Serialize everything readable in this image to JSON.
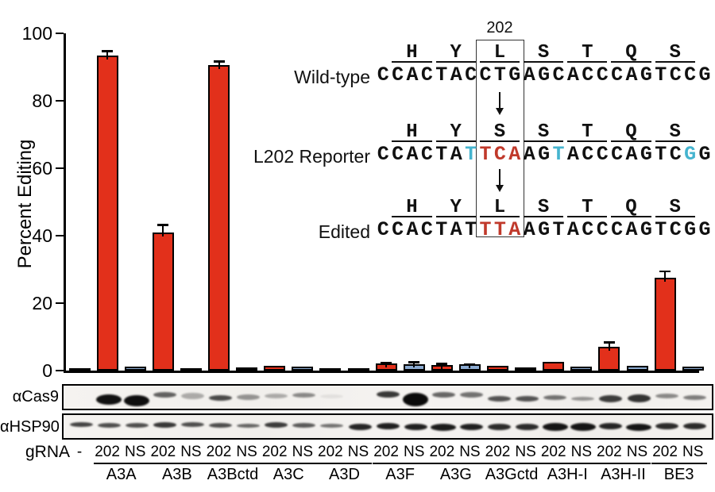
{
  "chart_data": {
    "type": "bar",
    "title": "",
    "xlabel": "",
    "ylabel": "Percent Editing",
    "ylim": [
      0,
      100
    ],
    "yticks": [
      0,
      20,
      40,
      60,
      80,
      100
    ],
    "grid": false,
    "colors": {
      "g202": "#e2301b",
      "ns": "#8cabd1",
      "control": "#1c1c1c"
    },
    "groups": [
      "A3A",
      "A3B",
      "A3Bctd",
      "A3C",
      "A3D",
      "A3F",
      "A3G",
      "A3Gctd",
      "A3H-I",
      "A3H-II",
      "BE3"
    ],
    "bars": [
      {
        "group": "",
        "gRNA": "-",
        "value": 0.7,
        "error": null
      },
      {
        "group": "A3A",
        "gRNA": "202",
        "value": 93.5,
        "error": 1.5
      },
      {
        "group": "A3A",
        "gRNA": "NS",
        "value": 1.2,
        "error": null
      },
      {
        "group": "A3B",
        "gRNA": "202",
        "value": 41,
        "error": 2.5
      },
      {
        "group": "A3B",
        "gRNA": "NS",
        "value": 0.8,
        "error": null
      },
      {
        "group": "A3Bctd",
        "gRNA": "202",
        "value": 90.5,
        "error": 1.5
      },
      {
        "group": "A3Bctd",
        "gRNA": "NS",
        "value": 1.0,
        "error": null
      },
      {
        "group": "A3C",
        "gRNA": "202",
        "value": 1.4,
        "error": null
      },
      {
        "group": "A3C",
        "gRNA": "NS",
        "value": 1.1,
        "error": null
      },
      {
        "group": "A3D",
        "gRNA": "202",
        "value": 0.8,
        "error": null
      },
      {
        "group": "A3D",
        "gRNA": "NS",
        "value": 0.8,
        "error": null
      },
      {
        "group": "A3F",
        "gRNA": "202",
        "value": 2.1,
        "error": 0.6
      },
      {
        "group": "A3F",
        "gRNA": "NS",
        "value": 2.0,
        "error": 0.8
      },
      {
        "group": "A3G",
        "gRNA": "202",
        "value": 1.6,
        "error": 0.7
      },
      {
        "group": "A3G",
        "gRNA": "NS",
        "value": 1.8,
        "error": 0.3
      },
      {
        "group": "A3Gctd",
        "gRNA": "202",
        "value": 1.3,
        "error": null
      },
      {
        "group": "A3Gctd",
        "gRNA": "NS",
        "value": 0.9,
        "error": null
      },
      {
        "group": "A3H-I",
        "gRNA": "202",
        "value": 2.7,
        "error": null
      },
      {
        "group": "A3H-I",
        "gRNA": "NS",
        "value": 1.1,
        "error": null
      },
      {
        "group": "A3H-II",
        "gRNA": "202",
        "value": 7.0,
        "error": 1.6
      },
      {
        "group": "A3H-II",
        "gRNA": "NS",
        "value": 1.3,
        "error": null
      },
      {
        "group": "BE3",
        "gRNA": "202",
        "value": 27.5,
        "error": 2.2
      },
      {
        "group": "BE3",
        "gRNA": "NS",
        "value": 1.1,
        "error": null
      }
    ]
  },
  "sequence_panel": {
    "codon_label": "202",
    "letter_colors": {
      "red": "#c0392b",
      "blue": "#45b4cf",
      "black": "#111111"
    },
    "rows": [
      {
        "label": "Wild-type",
        "aa": [
          "H",
          "Y",
          "L",
          "S",
          "T",
          "Q",
          "S"
        ],
        "seq": "CCACTACCTGAGCACCCAGTCCG",
        "red_idx": [],
        "blue_idx": []
      },
      {
        "label": "L202 Reporter",
        "aa": [
          "H",
          "Y",
          "S",
          "S",
          "T",
          "Q",
          "S"
        ],
        "seq": "CCACTATTCAAGTACCCAGTCGG",
        "red_idx": [
          7,
          8,
          9
        ],
        "blue_idx": [
          6,
          12,
          21
        ]
      },
      {
        "label": "Edited",
        "aa": [
          "H",
          "Y",
          "L",
          "S",
          "T",
          "Q",
          "S"
        ],
        "seq": "CCACTATTTAAGTACCCAGTCGG",
        "red_idx": [
          7,
          8,
          9
        ],
        "blue_idx": []
      }
    ]
  },
  "blots": [
    {
      "label": "αCas9",
      "bands": [
        [
          0,
          0,
          0
        ],
        [
          0.97,
          13,
          17
        ],
        [
          0.98,
          14,
          19
        ],
        [
          0.62,
          7,
          11
        ],
        [
          0.3,
          8,
          13
        ],
        [
          0.72,
          7,
          15
        ],
        [
          0.4,
          7,
          14
        ],
        [
          0.3,
          6,
          13
        ],
        [
          0.45,
          6,
          12
        ],
        [
          0.07,
          5,
          13
        ],
        [
          0,
          0,
          0
        ],
        [
          0.8,
          8,
          11
        ],
        [
          1.0,
          17,
          17
        ],
        [
          0.6,
          7,
          11
        ],
        [
          0.55,
          7,
          11
        ],
        [
          0.68,
          7,
          16
        ],
        [
          0.68,
          7,
          16
        ],
        [
          0.55,
          6,
          15
        ],
        [
          0.4,
          5,
          16
        ],
        [
          0.78,
          9,
          16
        ],
        [
          0.82,
          10,
          16
        ],
        [
          0.45,
          6,
          13
        ],
        [
          0.5,
          6,
          15
        ]
      ]
    },
    {
      "label": "αHSP90",
      "bands": [
        [
          0.75,
          6,
          12
        ],
        [
          0.7,
          6,
          13
        ],
        [
          0.7,
          6,
          13
        ],
        [
          0.8,
          7,
          12
        ],
        [
          0.7,
          6,
          12
        ],
        [
          0.7,
          6,
          13
        ],
        [
          0.6,
          5,
          13
        ],
        [
          0.78,
          7,
          12
        ],
        [
          0.65,
          6,
          13
        ],
        [
          0.55,
          5,
          13
        ],
        [
          0.88,
          8,
          15
        ],
        [
          0.9,
          8,
          14
        ],
        [
          0.9,
          8,
          15
        ],
        [
          0.92,
          9,
          15
        ],
        [
          0.9,
          8,
          15
        ],
        [
          0.85,
          8,
          15
        ],
        [
          0.85,
          8,
          15
        ],
        [
          0.95,
          10,
          15
        ],
        [
          0.95,
          10,
          15
        ],
        [
          0.88,
          8,
          14
        ],
        [
          0.95,
          9,
          15
        ],
        [
          0.85,
          8,
          14
        ],
        [
          0.85,
          8,
          14
        ]
      ]
    }
  ],
  "xaxis": {
    "gRNA_label": "gRNA",
    "control_label": "-",
    "pair_labels": [
      "202",
      "NS"
    ]
  }
}
